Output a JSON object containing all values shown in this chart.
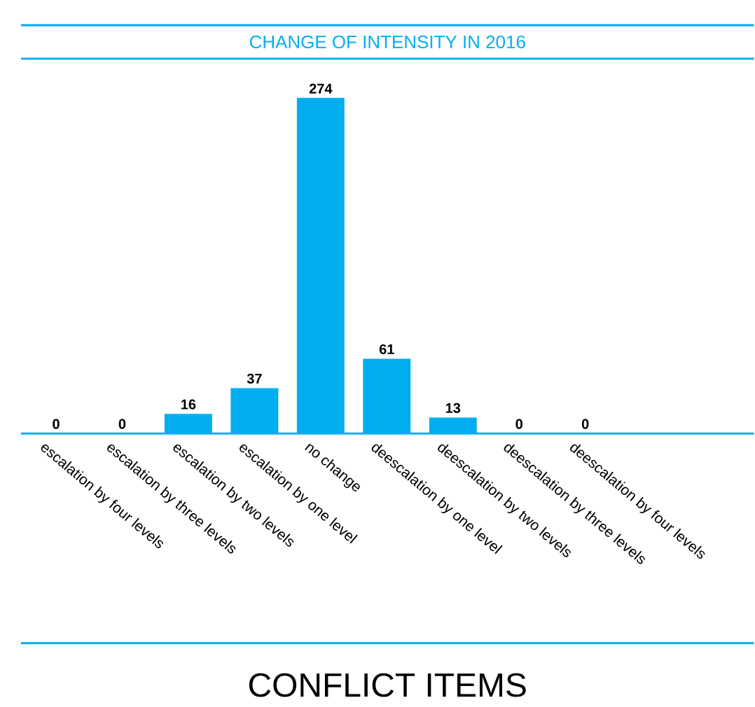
{
  "chart_data": {
    "type": "bar",
    "title": "CHANGE OF INTENSITY IN 2016",
    "xlabel": "CONFLICT ITEMS",
    "categories": [
      "escalation by four levels",
      "escalation by three levels",
      "escalation by two levels",
      "escalation by one level",
      "no change",
      "deescalation by one level",
      "deescalation by two levels",
      "deescalation by three levels",
      "deescalation by four levels"
    ],
    "values": [
      0,
      0,
      16,
      37,
      274,
      61,
      13,
      0,
      0
    ],
    "color": "#00aeef",
    "data_labels": true
  }
}
